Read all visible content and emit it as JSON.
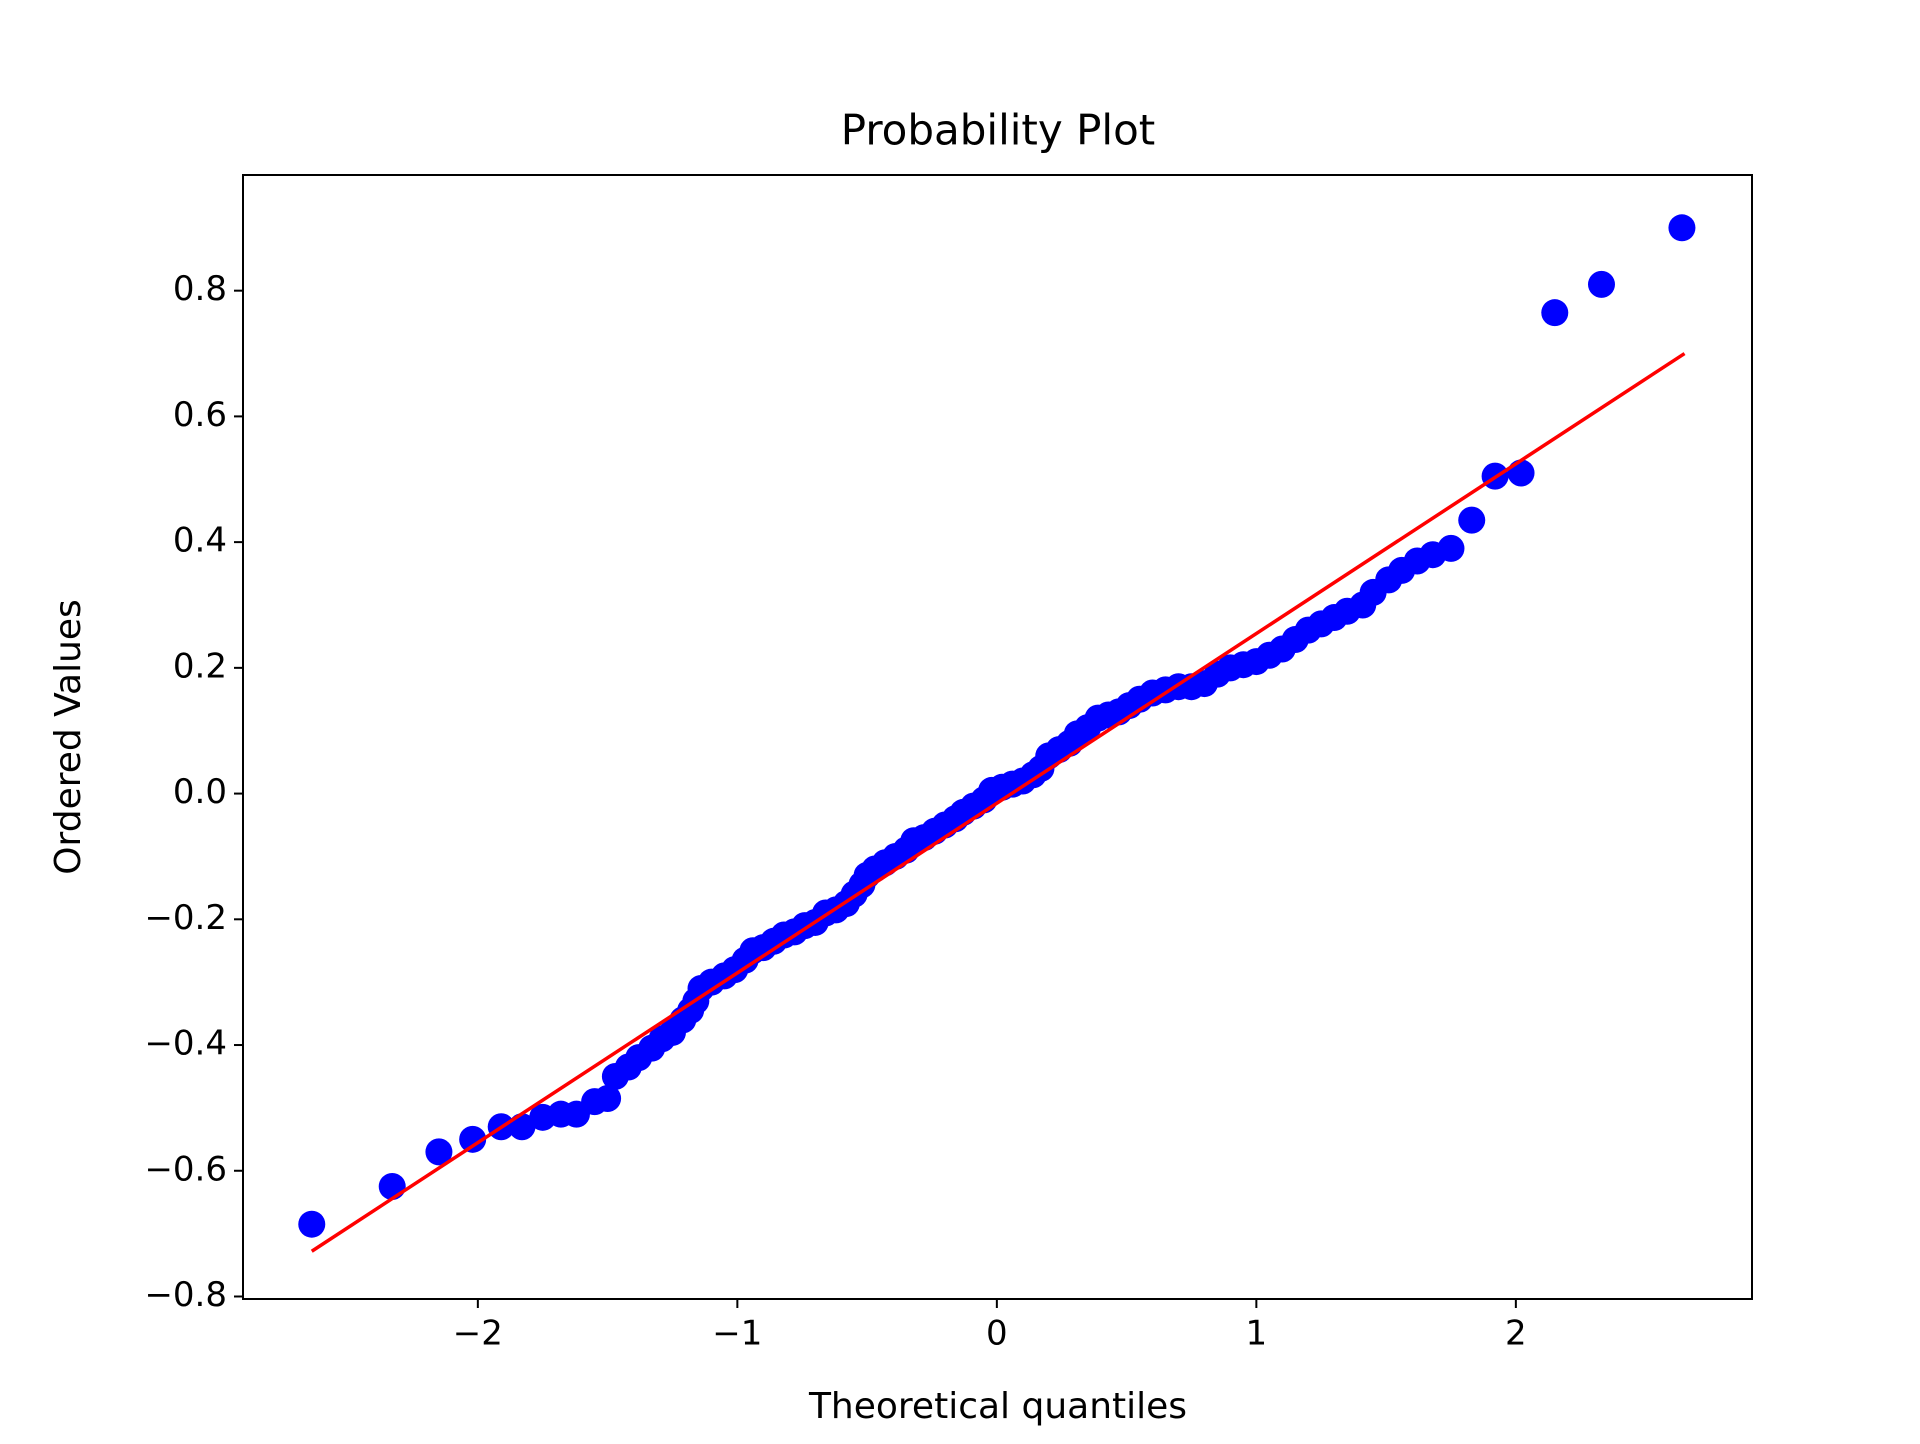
{
  "chart_data": {
    "type": "scatter",
    "title": "Probability Plot",
    "x_label": "Theoretical quantiles",
    "y_label": "Ordered Values",
    "xlim": [
      -2.905,
      2.91
    ],
    "ylim": [
      -0.804,
      0.984
    ],
    "xticks": [
      {
        "value": -2,
        "label": "−2"
      },
      {
        "value": -1,
        "label": "−1"
      },
      0,
      1,
      2
    ],
    "yticks": [
      {
        "value": -0.8,
        "label": "−0.8"
      },
      {
        "value": -0.6,
        "label": "−0.6"
      },
      {
        "value": -0.4,
        "label": "−0.4"
      },
      {
        "value": -0.2,
        "label": "−0.2"
      },
      {
        "value": 0,
        "label": "0.0"
      },
      0.2,
      0.4,
      0.6,
      0.8
    ],
    "series": [
      {
        "type": "scatter",
        "color": "#0000ff",
        "x": [
          -2.64,
          -2.33,
          -2.15,
          -2.02,
          -1.91,
          -1.83,
          -1.75,
          -1.68,
          -1.62,
          -1.55,
          -1.5,
          -1.47,
          -1.42,
          -1.38,
          -1.33,
          -1.29,
          -1.25,
          -1.21,
          -1.18,
          -1.16,
          -1.14,
          -1.1,
          -1.05,
          -1.01,
          -0.97,
          -0.94,
          -0.9,
          -0.86,
          -0.82,
          -0.78,
          -0.74,
          -0.7,
          -0.66,
          -0.62,
          -0.58,
          -0.55,
          -0.52,
          -0.5,
          -0.47,
          -0.43,
          -0.39,
          -0.35,
          -0.32,
          -0.28,
          -0.24,
          -0.2,
          -0.16,
          -0.13,
          -0.09,
          -0.05,
          -0.02,
          0.02,
          0.06,
          0.1,
          0.14,
          0.17,
          0.2,
          0.24,
          0.28,
          0.31,
          0.35,
          0.39,
          0.43,
          0.47,
          0.51,
          0.55,
          0.6,
          0.65,
          0.7,
          0.75,
          0.8,
          0.85,
          0.9,
          0.95,
          1.0,
          1.05,
          1.1,
          1.15,
          1.2,
          1.25,
          1.3,
          1.35,
          1.41,
          1.45,
          1.51,
          1.56,
          1.62,
          1.68,
          1.75,
          1.83,
          1.92,
          2.02,
          2.15,
          2.33,
          2.64
        ],
        "values": [
          -0.685,
          -0.625,
          -0.57,
          -0.55,
          -0.53,
          -0.53,
          -0.515,
          -0.51,
          -0.51,
          -0.49,
          -0.485,
          -0.45,
          -0.435,
          -0.42,
          -0.405,
          -0.39,
          -0.38,
          -0.36,
          -0.345,
          -0.33,
          -0.31,
          -0.3,
          -0.29,
          -0.28,
          -0.265,
          -0.25,
          -0.245,
          -0.235,
          -0.225,
          -0.22,
          -0.21,
          -0.205,
          -0.19,
          -0.185,
          -0.175,
          -0.16,
          -0.145,
          -0.13,
          -0.12,
          -0.11,
          -0.1,
          -0.09,
          -0.075,
          -0.07,
          -0.06,
          -0.05,
          -0.04,
          -0.03,
          -0.02,
          -0.01,
          0.005,
          0.01,
          0.015,
          0.02,
          0.03,
          0.04,
          0.06,
          0.07,
          0.08,
          0.095,
          0.105,
          0.12,
          0.125,
          0.13,
          0.14,
          0.15,
          0.16,
          0.165,
          0.17,
          0.17,
          0.175,
          0.19,
          0.2,
          0.205,
          0.21,
          0.22,
          0.23,
          0.245,
          0.26,
          0.27,
          0.28,
          0.29,
          0.3,
          0.32,
          0.34,
          0.355,
          0.37,
          0.38,
          0.39,
          0.435,
          0.505,
          0.51,
          0.765,
          0.81,
          0.9
        ]
      },
      {
        "type": "line",
        "color": "#ff0000",
        "x": [
          -2.64,
          2.65
        ],
        "values": [
          -0.728,
          0.7
        ]
      }
    ]
  }
}
